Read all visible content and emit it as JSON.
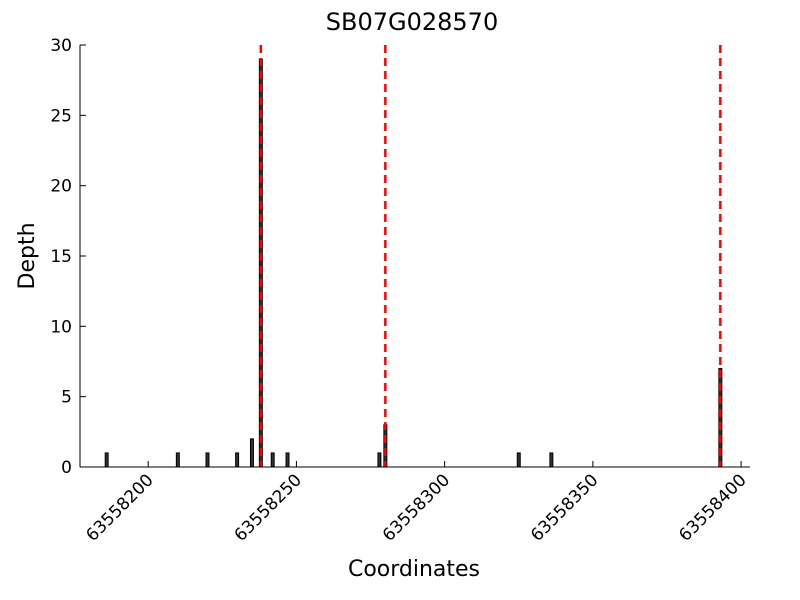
{
  "chart_data": {
    "type": "bar",
    "title": "SB07G028570",
    "x_label": "Coordinates",
    "y_label": "Depth",
    "x": [
      63558186,
      63558210,
      63558220,
      63558230,
      63558235,
      63558238,
      63558242,
      63558247,
      63558278,
      63558280,
      63558325,
      63558336,
      63558393
    ],
    "values": [
      1,
      1,
      1,
      1,
      2,
      29,
      1,
      1,
      1,
      3,
      1,
      1,
      7
    ],
    "bar_width": 1,
    "color": "#333333",
    "vlines": [
      63558238,
      63558280,
      63558393
    ],
    "vline_color": "#ff0000",
    "xlim": [
      63558177,
      63558403
    ],
    "ylim": [
      0,
      30
    ],
    "xticks": [
      63558200,
      63558250,
      63558300,
      63558350,
      63558400
    ],
    "yticks": [
      0,
      5,
      10,
      15,
      20,
      25,
      30
    ]
  }
}
